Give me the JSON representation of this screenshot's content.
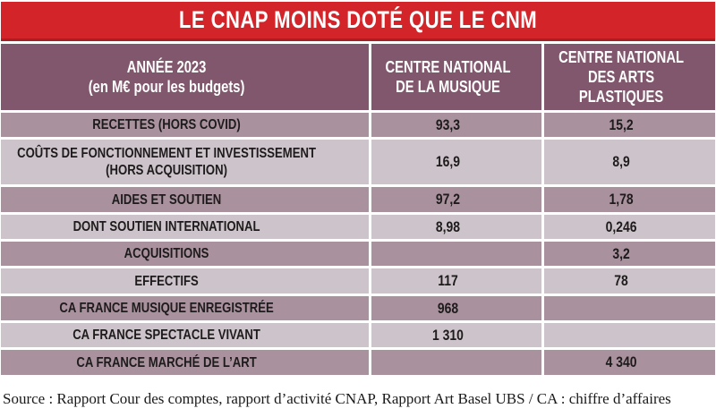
{
  "title": "LE CNAP MOINS DOTÉ QUE LE CNM",
  "colors": {
    "title_red": "#d32429",
    "title_red_dark": "#a52025",
    "header_bg": "#80576c",
    "row_dark": "#aa919e",
    "row_light": "#cdc3ca",
    "text": "#1d1b1b"
  },
  "table": {
    "header": {
      "col_label": "ANNÉE 2023\n(en M€ pour les budgets)",
      "col_cnm": "CENTRE NATIONAL\nDE LA MUSIQUE",
      "col_cnap": "CENTRE NATIONAL\nDES ARTS PLASTIQUES"
    },
    "rows": [
      {
        "label": "RECETTES (HORS COVID)",
        "cnm": "93,3",
        "cnap": "15,2"
      },
      {
        "label": "COÛTS DE FONCTIONNEMENT ET INVESTISSEMENT\n(HORS ACQUISITION)",
        "cnm": "16,9",
        "cnap": "8,9"
      },
      {
        "label": "AIDES ET SOUTIEN",
        "cnm": "97,2",
        "cnap": "1,78"
      },
      {
        "label": "DONT SOUTIEN INTERNATIONAL",
        "cnm": "8,98",
        "cnap": "0,246"
      },
      {
        "label": "ACQUISITIONS",
        "cnm": "",
        "cnap": "3,2"
      },
      {
        "label": "EFFECTIFS",
        "cnm": "117",
        "cnap": "78"
      },
      {
        "label": "CA FRANCE MUSIQUE ENREGISTRÉE",
        "cnm": "968",
        "cnap": ""
      },
      {
        "label": "CA FRANCE SPECTACLE VIVANT",
        "cnm": "1 310",
        "cnap": ""
      },
      {
        "label": "CA FRANCE MARCHÉ DE L’ART",
        "cnm": "",
        "cnap": "4 340"
      }
    ]
  },
  "source": "Source : Rapport Cour des comptes, rapport d’activité CNAP, Rapport Art Basel UBS / CA : chiffre d’affaires"
}
